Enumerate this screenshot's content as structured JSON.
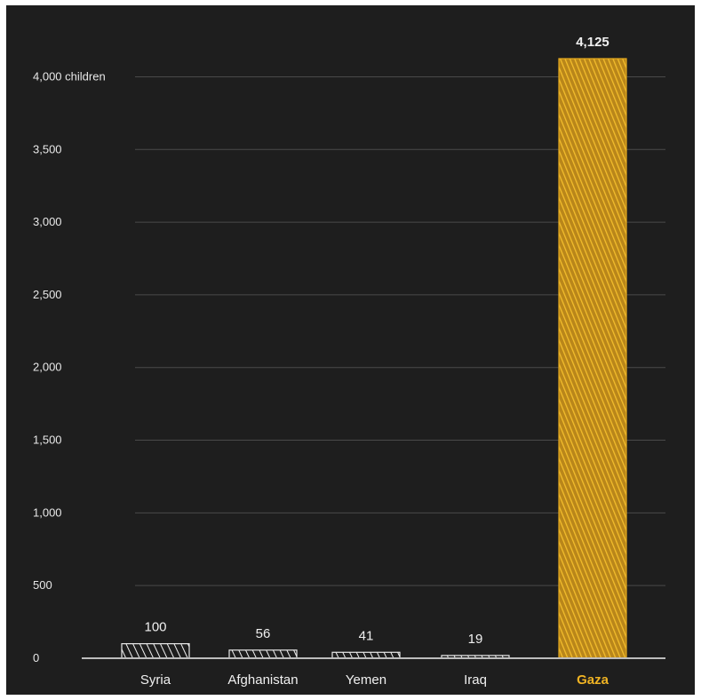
{
  "chart_data": {
    "type": "bar",
    "categories": [
      "Syria",
      "Afghanistan",
      "Yemen",
      "Iraq",
      "Gaza"
    ],
    "values": [
      100,
      56,
      41,
      19,
      4125
    ],
    "value_labels": [
      "100",
      "56",
      "41",
      "19",
      "4,125"
    ],
    "highlight_category": "Gaza",
    "ylim": [
      0,
      4125
    ],
    "y_ticks": [
      0,
      500,
      1000,
      1500,
      2000,
      2500,
      3000,
      3500,
      4000
    ],
    "y_tick_labels": [
      "0",
      "500",
      "1,000",
      "1,500",
      "2,000",
      "2,500",
      "3,000",
      "3,500",
      "4,000 children"
    ],
    "grid": true,
    "colors": {
      "background": "#1e1e1e",
      "bar_default": "#e9e9e9",
      "bar_highlight": "#e5aa1f",
      "gridline": "#4a4a4a",
      "axis": "#bdbdbd",
      "highlight_label": "#f0b323"
    }
  }
}
